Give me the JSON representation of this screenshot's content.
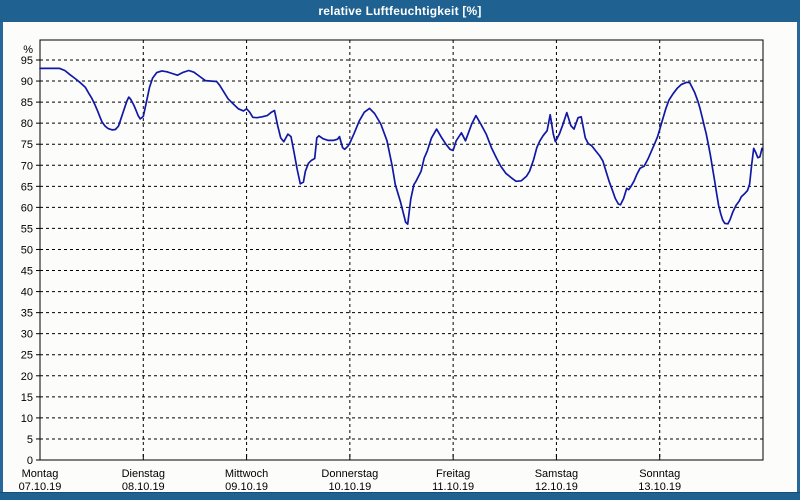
{
  "window": {
    "title": "relative Luftfeuchtigkeit [%]"
  },
  "colors": {
    "titlebar": "#1F6190",
    "window_border": "#27679B",
    "bottom_bar": "#1F6190",
    "background": "#FCFDFB",
    "plot_frame": "#000000",
    "grid": "#000000",
    "line": "#1118A5",
    "label_text": "#000000",
    "title_text": "#FFFFFF"
  },
  "chart_data": {
    "type": "line",
    "title": "relative Luftfeuchtigkeit [%]",
    "ylabel": "%",
    "ylim": [
      0,
      100
    ],
    "yticks": [
      0,
      5,
      10,
      15,
      20,
      25,
      30,
      35,
      40,
      45,
      50,
      55,
      60,
      65,
      70,
      75,
      80,
      85,
      90,
      95
    ],
    "grid": "dashed",
    "legend": "none",
    "x_unit": "days",
    "xlim_days": [
      0,
      7
    ],
    "days": [
      {
        "name": "Montag",
        "date": "07.10.19"
      },
      {
        "name": "Dienstag",
        "date": "08.10.19"
      },
      {
        "name": "Mittwoch",
        "date": "09.10.19"
      },
      {
        "name": "Donnerstag",
        "date": "10.10.19"
      },
      {
        "name": "Freitag",
        "date": "11.10.19"
      },
      {
        "name": "Samstag",
        "date": "12.10.19"
      },
      {
        "name": "Sonntag",
        "date": "13.10.19"
      }
    ],
    "series": [
      {
        "name": "relative Luftfeuchtigkeit",
        "color": "#1118A5",
        "points": [
          [
            0.0,
            93
          ],
          [
            0.19,
            93
          ],
          [
            0.24,
            92.5
          ],
          [
            0.29,
            91.5
          ],
          [
            0.34,
            90.6
          ],
          [
            0.39,
            89.6
          ],
          [
            0.44,
            88.5
          ],
          [
            0.47,
            87.2
          ],
          [
            0.5,
            86.0
          ],
          [
            0.53,
            84.5
          ],
          [
            0.56,
            82.8
          ],
          [
            0.58,
            81.5
          ],
          [
            0.6,
            80.3
          ],
          [
            0.63,
            79.3
          ],
          [
            0.66,
            78.7
          ],
          [
            0.7,
            78.4
          ],
          [
            0.73,
            78.5
          ],
          [
            0.76,
            79.3
          ],
          [
            0.78,
            80.8
          ],
          [
            0.81,
            83.0
          ],
          [
            0.84,
            85.2
          ],
          [
            0.86,
            86.2
          ],
          [
            0.88,
            85.6
          ],
          [
            0.91,
            84.2
          ],
          [
            0.93,
            83.0
          ],
          [
            0.95,
            81.8
          ],
          [
            0.97,
            81.0
          ],
          [
            1.0,
            81.6
          ],
          [
            1.03,
            85.0
          ],
          [
            1.06,
            88.5
          ],
          [
            1.09,
            90.7
          ],
          [
            1.13,
            92.0
          ],
          [
            1.18,
            92.4
          ],
          [
            1.23,
            92.2
          ],
          [
            1.28,
            91.8
          ],
          [
            1.33,
            91.4
          ],
          [
            1.38,
            92.0
          ],
          [
            1.44,
            92.5
          ],
          [
            1.49,
            92.1
          ],
          [
            1.54,
            91.2
          ],
          [
            1.6,
            90.1
          ],
          [
            1.66,
            90.0
          ],
          [
            1.71,
            89.9
          ],
          [
            1.74,
            89.0
          ],
          [
            1.77,
            87.8
          ],
          [
            1.82,
            85.8
          ],
          [
            1.87,
            84.6
          ],
          [
            1.92,
            83.4
          ],
          [
            1.97,
            82.9
          ],
          [
            2.0,
            83.4
          ],
          [
            2.03,
            82.6
          ],
          [
            2.06,
            81.4
          ],
          [
            2.1,
            81.3
          ],
          [
            2.15,
            81.5
          ],
          [
            2.2,
            81.8
          ],
          [
            2.24,
            82.6
          ],
          [
            2.27,
            83.0
          ],
          [
            2.3,
            79.5
          ],
          [
            2.33,
            76.5
          ],
          [
            2.36,
            75.6
          ],
          [
            2.4,
            77.4
          ],
          [
            2.43,
            76.8
          ],
          [
            2.46,
            73.0
          ],
          [
            2.49,
            69.0
          ],
          [
            2.52,
            65.6
          ],
          [
            2.55,
            66.0
          ],
          [
            2.57,
            68.6
          ],
          [
            2.6,
            70.5
          ],
          [
            2.63,
            71.2
          ],
          [
            2.66,
            71.6
          ],
          [
            2.68,
            76.5
          ],
          [
            2.7,
            77.0
          ],
          [
            2.74,
            76.3
          ],
          [
            2.79,
            75.9
          ],
          [
            2.84,
            75.9
          ],
          [
            2.88,
            76.2
          ],
          [
            2.9,
            76.8
          ],
          [
            2.93,
            74.2
          ],
          [
            2.95,
            73.8
          ],
          [
            2.98,
            74.5
          ],
          [
            3.0,
            75.3
          ],
          [
            3.04,
            77.5
          ],
          [
            3.09,
            80.5
          ],
          [
            3.14,
            82.6
          ],
          [
            3.19,
            83.5
          ],
          [
            3.24,
            82.3
          ],
          [
            3.3,
            79.8
          ],
          [
            3.36,
            75.8
          ],
          [
            3.41,
            69.8
          ],
          [
            3.44,
            65.4
          ],
          [
            3.49,
            61.3
          ],
          [
            3.54,
            56.5
          ],
          [
            3.56,
            56.0
          ],
          [
            3.59,
            62.0
          ],
          [
            3.62,
            65.4
          ],
          [
            3.64,
            66.2
          ],
          [
            3.69,
            68.6
          ],
          [
            3.72,
            71.7
          ],
          [
            3.75,
            73.4
          ],
          [
            3.79,
            76.5
          ],
          [
            3.84,
            78.6
          ],
          [
            3.89,
            76.5
          ],
          [
            3.93,
            75.0
          ],
          [
            3.97,
            73.8
          ],
          [
            4.0,
            73.5
          ],
          [
            4.03,
            75.8
          ],
          [
            4.08,
            77.7
          ],
          [
            4.12,
            75.8
          ],
          [
            4.18,
            79.8
          ],
          [
            4.22,
            81.8
          ],
          [
            4.27,
            79.7
          ],
          [
            4.32,
            77.4
          ],
          [
            4.37,
            74.2
          ],
          [
            4.42,
            71.7
          ],
          [
            4.46,
            69.8
          ],
          [
            4.51,
            68.1
          ],
          [
            4.57,
            66.9
          ],
          [
            4.61,
            66.2
          ],
          [
            4.66,
            66.3
          ],
          [
            4.71,
            67.4
          ],
          [
            4.74,
            68.6
          ],
          [
            4.78,
            71.4
          ],
          [
            4.81,
            74.2
          ],
          [
            4.84,
            75.8
          ],
          [
            4.87,
            77.0
          ],
          [
            4.91,
            78.2
          ],
          [
            4.94,
            82.0
          ],
          [
            4.97,
            77.4
          ],
          [
            4.99,
            75.6
          ],
          [
            5.03,
            77.5
          ],
          [
            5.06,
            79.5
          ],
          [
            5.1,
            82.5
          ],
          [
            5.14,
            79.4
          ],
          [
            5.17,
            78.6
          ],
          [
            5.21,
            81.3
          ],
          [
            5.24,
            81.5
          ],
          [
            5.28,
            76.5
          ],
          [
            5.31,
            75.1
          ],
          [
            5.34,
            74.7
          ],
          [
            5.38,
            73.4
          ],
          [
            5.42,
            72.2
          ],
          [
            5.45,
            71.0
          ],
          [
            5.48,
            68.6
          ],
          [
            5.51,
            66.2
          ],
          [
            5.54,
            64.2
          ],
          [
            5.57,
            62.1
          ],
          [
            5.6,
            60.8
          ],
          [
            5.62,
            60.6
          ],
          [
            5.65,
            62.1
          ],
          [
            5.68,
            64.5
          ],
          [
            5.7,
            64.2
          ],
          [
            5.72,
            64.9
          ],
          [
            5.75,
            66.2
          ],
          [
            5.78,
            67.9
          ],
          [
            5.81,
            69.3
          ],
          [
            5.85,
            69.8
          ],
          [
            5.89,
            71.7
          ],
          [
            5.92,
            73.4
          ],
          [
            5.95,
            75.1
          ],
          [
            5.98,
            76.8
          ],
          [
            6.0,
            78.5
          ],
          [
            6.03,
            81.0
          ],
          [
            6.06,
            83.5
          ],
          [
            6.09,
            85.5
          ],
          [
            6.13,
            87.0
          ],
          [
            6.17,
            88.3
          ],
          [
            6.21,
            89.2
          ],
          [
            6.26,
            89.7
          ],
          [
            6.29,
            89.6
          ],
          [
            6.31,
            88.7
          ],
          [
            6.34,
            87.2
          ],
          [
            6.37,
            85.2
          ],
          [
            6.39,
            83.5
          ],
          [
            6.41,
            81.5
          ],
          [
            6.43,
            79.5
          ],
          [
            6.45,
            77.5
          ],
          [
            6.47,
            75.0
          ],
          [
            6.49,
            72.5
          ],
          [
            6.51,
            69.5
          ],
          [
            6.53,
            66.5
          ],
          [
            6.55,
            63.5
          ],
          [
            6.57,
            60.5
          ],
          [
            6.59,
            58.5
          ],
          [
            6.61,
            57.0
          ],
          [
            6.63,
            56.2
          ],
          [
            6.66,
            56.1
          ],
          [
            6.68,
            57.0
          ],
          [
            6.71,
            59.0
          ],
          [
            6.74,
            60.5
          ],
          [
            6.77,
            61.5
          ],
          [
            6.79,
            62.5
          ],
          [
            6.82,
            63.2
          ],
          [
            6.85,
            64.0
          ],
          [
            6.87,
            65.5
          ],
          [
            6.89,
            70.0
          ],
          [
            6.91,
            74.0
          ],
          [
            6.93,
            73.0
          ],
          [
            6.95,
            71.8
          ],
          [
            6.97,
            72.0
          ],
          [
            6.99,
            74.0
          ]
        ]
      }
    ]
  }
}
